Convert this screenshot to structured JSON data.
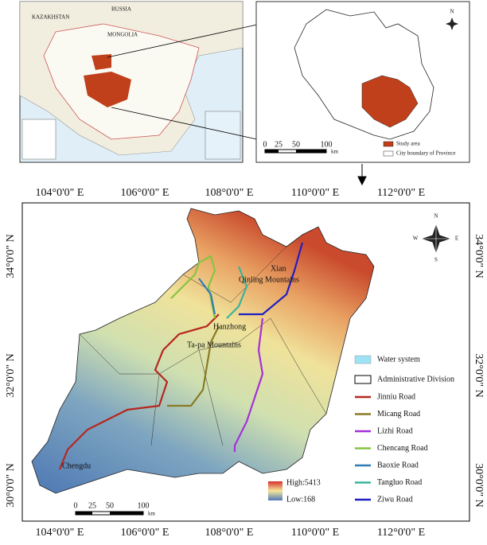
{
  "inset_world": {
    "labels": [
      "RUSSIA",
      "KAZAKHSTAN",
      "MONGOLIA"
    ]
  },
  "inset_province": {
    "compass": "N",
    "scale": {
      "ticks": [
        "0",
        "25",
        "50",
        "100"
      ],
      "unit": "km"
    },
    "legend": [
      "Study area",
      "City boundary of Province"
    ]
  },
  "main_map": {
    "lon_labels": [
      "104°0'0\" E",
      "106°0'0\" E",
      "108°0'0\" E",
      "110°0'0\" E",
      "112°0'0\" E"
    ],
    "lat_labels": [
      "34°0'0\" N",
      "32°0'0\" N",
      "30°0'0\" N"
    ],
    "places": [
      "Xian",
      "Qinling Mountains",
      "Hanzhong",
      "Ta-pa Mountains",
      "Chengdu"
    ],
    "compass": {
      "north": "N",
      "east": "E",
      "south": "S",
      "west": "W"
    },
    "legend": {
      "water": "Water system",
      "admin": "Administrative Division",
      "roads": [
        {
          "name": "Jinniu Road",
          "color": "#b5271f"
        },
        {
          "name": "Micang Road",
          "color": "#8a7a26"
        },
        {
          "name": "Lizhi Road",
          "color": "#a431d6"
        },
        {
          "name": "Chencang Road",
          "color": "#86c440"
        },
        {
          "name": "Baoxie Road",
          "color": "#2f7db5"
        },
        {
          "name": "Tangluo Road",
          "color": "#38b49a"
        },
        {
          "name": "Ziwu Road",
          "color": "#1f1fc4"
        }
      ]
    },
    "elevation": {
      "high": "High:5413",
      "low": "Low:168"
    },
    "scale": {
      "ticks": [
        "0",
        "25",
        "50",
        "100"
      ],
      "unit": "km"
    }
  }
}
